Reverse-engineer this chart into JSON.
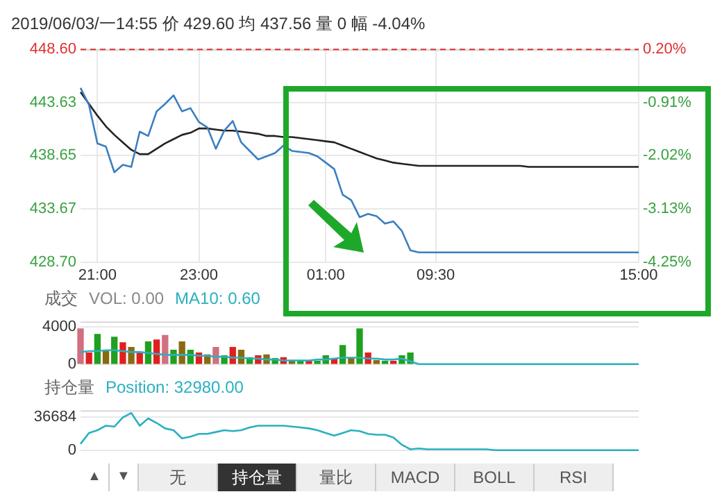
{
  "chart_data": [
    {
      "type": "line",
      "title": "2019/06/03/一14:55 价 429.60 均 437.56 量 0 幅 -4.04%",
      "categories": [
        null,
        null,
        "21:00",
        null,
        null,
        null,
        null,
        null,
        null,
        null,
        null,
        null,
        null,
        null,
        "23:00",
        null,
        null,
        null,
        null,
        null,
        null,
        null,
        null,
        null,
        null,
        null,
        null,
        null,
        null,
        "01:00",
        null,
        null,
        null,
        null,
        null,
        null,
        null,
        null,
        null,
        null,
        null,
        null,
        "09:30",
        null,
        null,
        null,
        null,
        null,
        null,
        null,
        null,
        null,
        null,
        null,
        null,
        null,
        null,
        null,
        null,
        null,
        null,
        null,
        null,
        null,
        null,
        null,
        "15:00"
      ],
      "ylim": [
        428.7,
        448.6
      ],
      "yticks": [
        {
          "value": 428.7,
          "label": "428.70"
        },
        433.67,
        438.65,
        443.63,
        {
          "value": 448.6,
          "label": "448.60"
        }
      ],
      "y2lim": [
        -4.25,
        0.2
      ],
      "y2ticks": [
        {
          "value": -4.25,
          "label": "-4.25%"
        },
        {
          "value": -3.13,
          "label": "-3.13%"
        },
        {
          "value": -2.02,
          "label": "-2.02%"
        },
        {
          "value": -0.91,
          "label": "-0.91%"
        },
        {
          "value": 0.2,
          "label": "0.20%"
        }
      ],
      "grid": true,
      "ref_lines": [
        {
          "axis": "y",
          "value": 448.6,
          "color": "#e03030",
          "line_style": "dashed"
        }
      ],
      "series": [
        {
          "color": "#3a7fc0",
          "values": [
            445.0,
            443.4,
            439.8,
            439.5,
            437.1,
            437.8,
            437.6,
            440.9,
            440.5,
            442.8,
            443.5,
            444.3,
            442.8,
            443.1,
            441.8,
            441.3,
            439.3,
            441.0,
            441.9,
            439.9,
            439.1,
            438.3,
            438.6,
            438.9,
            439.6,
            439.1,
            439.0,
            438.9,
            438.6,
            438.0,
            437.4,
            435.0,
            434.5,
            432.9,
            433.2,
            433.0,
            432.3,
            432.5,
            431.6,
            429.8,
            429.6,
            429.6,
            429.6,
            429.6,
            429.6,
            429.6,
            429.6,
            429.6,
            429.6,
            429.6,
            429.6,
            429.6,
            429.6,
            429.6,
            429.6,
            429.6,
            429.6,
            429.6,
            429.6,
            429.6,
            429.6,
            429.6,
            429.6,
            429.6,
            429.6,
            429.6,
            429.6
          ]
        },
        {
          "color": "#222222",
          "values": [
            444.6,
            443.5,
            442.4,
            441.4,
            440.6,
            439.9,
            439.2,
            438.8,
            438.8,
            439.3,
            439.8,
            440.2,
            440.6,
            440.8,
            441.2,
            441.2,
            441.1,
            441.0,
            441.0,
            440.9,
            440.8,
            440.7,
            440.5,
            440.5,
            440.4,
            440.4,
            440.3,
            440.2,
            440.1,
            440.0,
            439.9,
            439.6,
            439.3,
            439.0,
            438.7,
            438.4,
            438.2,
            438.0,
            437.9,
            437.8,
            437.7,
            437.7,
            437.7,
            437.7,
            437.7,
            437.7,
            437.7,
            437.7,
            437.7,
            437.7,
            437.7,
            437.7,
            437.7,
            437.6,
            437.6,
            437.6,
            437.6,
            437.6,
            437.6,
            437.6,
            437.6,
            437.6,
            437.6,
            437.6,
            437.6,
            437.6,
            437.6
          ]
        }
      ]
    },
    {
      "type": "bar",
      "legend_title": "成交",
      "legend": "top left",
      "ylim": [
        0,
        4600
      ],
      "yticks": [
        0,
        4000
      ],
      "tick_labels": "y",
      "grid": "y",
      "categories": [
        null,
        null,
        null,
        null,
        null,
        null,
        null,
        null,
        null,
        null,
        null,
        null,
        null,
        null,
        null,
        null,
        null,
        null,
        null,
        null,
        null,
        null,
        null,
        null,
        null,
        null,
        null,
        null,
        null,
        null,
        null,
        null,
        null,
        null,
        null,
        null,
        null,
        null,
        null,
        null,
        null,
        null,
        null,
        null,
        null,
        null,
        null,
        null,
        null,
        null,
        null,
        null,
        null,
        null,
        null,
        null,
        null,
        null,
        null,
        null,
        null,
        null,
        null,
        null,
        null,
        null,
        null
      ],
      "series": [
        {
          "name": "VOL: 0.00",
          "values": [
            3800,
            1200,
            3200,
            1500,
            2900,
            2300,
            1800,
            1300,
            2400,
            2600,
            3100,
            1500,
            2400,
            1500,
            1200,
            1000,
            1800,
            900,
            1800,
            1500,
            700,
            900,
            1000,
            600,
            700,
            400,
            400,
            300,
            300,
            900,
            600,
            2000,
            700,
            3800,
            1200,
            400,
            300,
            300,
            900,
            1200,
            null,
            null,
            null,
            null,
            null,
            null,
            null,
            null,
            null,
            null,
            null,
            null,
            null,
            null,
            null,
            null,
            null,
            null,
            null,
            null,
            null,
            null,
            null,
            null,
            null,
            null,
            null
          ],
          "colors": [
            "#d07080",
            "#e02020",
            "#20a020",
            "#8a6a10",
            "#20a020",
            "#e02020",
            "#8a6a10",
            "#e02020",
            "#20a020",
            "#e02020",
            "#d07080",
            "#20a020",
            "#8a6a10",
            "#20a020",
            "#e02020",
            "#8a6a10",
            "#d07080",
            "#20a020",
            "#e02020",
            "#8a6a10",
            "#20a020",
            "#e02020",
            "#8a6a10",
            "#20a020",
            "#e02020",
            "#8a6a10",
            "#20a020",
            "#e02020",
            "#20a020",
            "#20a020",
            "#e02020",
            "#20a020",
            "#8a6a10",
            "#20a020",
            "#e02020",
            "#8a6a10",
            "#20a020",
            "#e02020",
            "#20a020",
            "#20a020",
            null,
            null,
            null,
            null,
            null,
            null,
            null,
            null,
            null,
            null,
            null,
            null,
            null,
            null,
            null,
            null,
            null,
            null,
            null,
            null,
            null,
            null,
            null,
            null,
            null,
            null,
            null
          ]
        },
        {
          "name": "MA10: 0.60",
          "type": "line",
          "color": "#2ab0c0",
          "values": [
            1300,
            1400,
            1400,
            1500,
            1500,
            1400,
            1300,
            1300,
            1200,
            1100,
            1000,
            1000,
            1000,
            1000,
            900,
            900,
            800,
            800,
            700,
            700,
            600,
            600,
            500,
            500,
            400,
            400,
            400,
            400,
            500,
            500,
            600,
            700,
            700,
            700,
            600,
            600,
            500,
            500,
            600,
            300,
            0,
            0,
            0,
            0,
            0,
            0,
            0,
            0,
            0,
            0,
            0,
            0,
            0,
            0,
            0,
            0,
            0,
            0,
            0,
            0,
            0,
            0,
            0,
            0,
            0,
            0,
            0
          ]
        }
      ]
    },
    {
      "type": "line",
      "title": "持仓量",
      "legend": "top left",
      "ylim": [
        0,
        44000
      ],
      "yticks": [
        0,
        36684
      ],
      "tick_labels": "y",
      "grid": "y",
      "categories": [
        null,
        null,
        null,
        null,
        null,
        null,
        null,
        null,
        null,
        null,
        null,
        null,
        null,
        null,
        null,
        null,
        null,
        null,
        null,
        null,
        null,
        null,
        null,
        null,
        null,
        null,
        null,
        null,
        null,
        null,
        null,
        null,
        null,
        null,
        null,
        null,
        null,
        null,
        null,
        null,
        null,
        null,
        null,
        null,
        null,
        null,
        null,
        null,
        null,
        null,
        null,
        null,
        null,
        null,
        null,
        null,
        null,
        null,
        null,
        null,
        null,
        null,
        null,
        null,
        null,
        null,
        null
      ],
      "annotations": [
        "▲",
        "▼",
        "无",
        "持仓量",
        "量比",
        "MACD",
        "BOLL",
        "RSI"
      ],
      "series": [
        {
          "name": "Position: 32980.00",
          "color": "#2ab0c0",
          "values": [
            7000,
            19000,
            22000,
            27000,
            26000,
            36000,
            41000,
            27000,
            35000,
            30000,
            24000,
            22000,
            13000,
            15000,
            18000,
            18000,
            20000,
            22000,
            21000,
            22000,
            25000,
            27000,
            27000,
            27000,
            27000,
            26000,
            25000,
            24000,
            22000,
            19000,
            16000,
            19000,
            22000,
            21000,
            18000,
            17000,
            17000,
            14000,
            6000,
            1000,
            2000,
            1000,
            1000,
            1000,
            1000,
            1000,
            1000,
            1000,
            1000,
            0,
            0,
            0,
            0,
            0,
            0,
            0,
            0,
            0,
            0,
            0,
            0,
            0,
            0,
            0,
            0,
            0,
            0
          ]
        }
      ]
    }
  ]
}
